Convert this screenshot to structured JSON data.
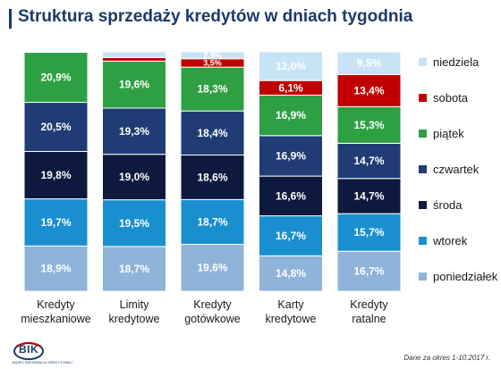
{
  "page": {
    "title": "Struktura sprzedaży kredytów w dniach tygodnia",
    "source_note": "Dane za okres 1-10.2017 r.",
    "logo_text": "BIK",
    "logo_subtext": "BIURO INFORMACJI KREDYTOWEJ"
  },
  "chart_data": {
    "type": "bar",
    "stacked": true,
    "title": "Struktura sprzedaży kredytów w dniach tygodnia",
    "categories": [
      "Kredyty mieszkaniowe",
      "Limity kredytowe",
      "Kredyty gotówkowe",
      "Karty kredytowe",
      "Kredyty ratalne"
    ],
    "category_lines": [
      [
        "Kredyty",
        "mieszkaniowe"
      ],
      [
        "Limity",
        "kredytowe"
      ],
      [
        "Kredyty",
        "gotówkowe"
      ],
      [
        "Karty",
        "kredytowe"
      ],
      [
        "Kredyty",
        "ratalne"
      ]
    ],
    "unit": "%",
    "ylim": [
      0,
      100
    ],
    "legend_position": "right",
    "series": [
      {
        "name": "poniedziałek",
        "color": "#8fb3d9",
        "values": [
          18.9,
          18.7,
          19.6,
          14.8,
          16.7
        ]
      },
      {
        "name": "wtorek",
        "color": "#1a8fd0",
        "values": [
          19.7,
          19.5,
          18.7,
          16.7,
          15.7
        ]
      },
      {
        "name": "środa",
        "color": "#0d1a3d",
        "values": [
          19.8,
          19.0,
          18.6,
          16.6,
          14.7
        ]
      },
      {
        "name": "czwartek",
        "color": "#1f3c74",
        "values": [
          20.5,
          19.3,
          18.4,
          16.9,
          14.7
        ]
      },
      {
        "name": "piątek",
        "color": "#2ea043",
        "values": [
          20.9,
          19.6,
          18.3,
          16.9,
          15.3
        ]
      },
      {
        "name": "sobota",
        "color": "#c00000",
        "values": [
          0.2,
          1.5,
          3.5,
          6.1,
          13.4
        ]
      },
      {
        "name": "niedziela",
        "color": "#c6e4f5",
        "values": [
          0.0,
          2.4,
          2.9,
          12.0,
          9.5
        ]
      }
    ],
    "labels": [
      [
        "18,9%",
        "18,7%",
        "19,6%",
        "14,8%",
        "16,7%"
      ],
      [
        "19,7%",
        "19,5%",
        "18,7%",
        "16,7%",
        "15,7%"
      ],
      [
        "19,8%",
        "19,0%",
        "18,6%",
        "16,6%",
        "14,7%"
      ],
      [
        "20,5%",
        "19,3%",
        "18,4%",
        "16,9%",
        "14,7%"
      ],
      [
        "20,9%",
        "19,6%",
        "18,3%",
        "16,9%",
        "15,3%"
      ],
      [
        "",
        "",
        "3,5%",
        "6,1%",
        "13,4%"
      ],
      [
        "",
        "",
        "2,9%",
        "12,0%",
        "9,5%"
      ]
    ]
  }
}
